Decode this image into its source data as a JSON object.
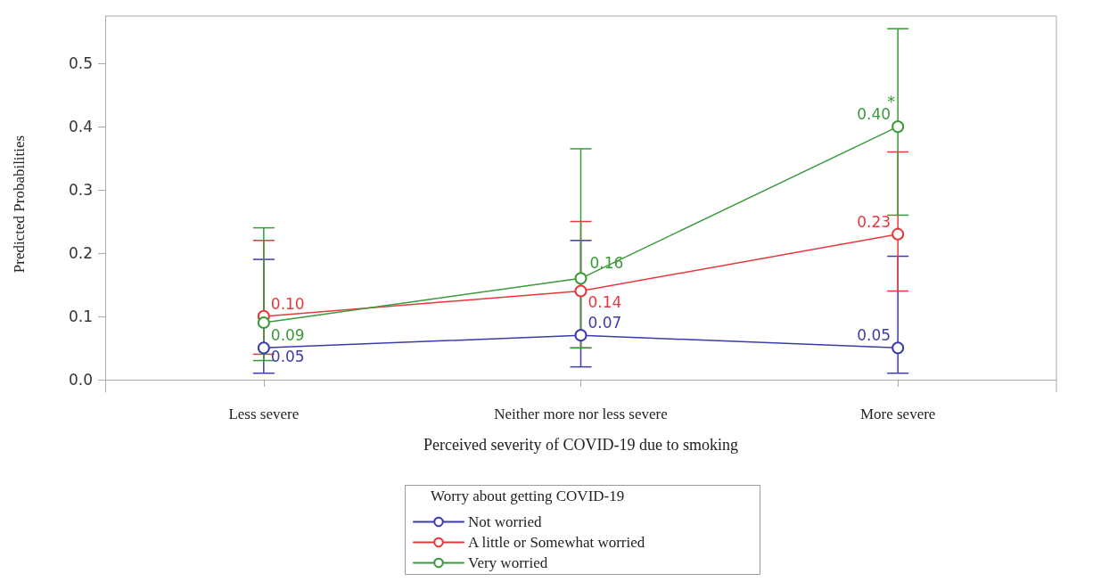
{
  "chart_data": {
    "type": "line",
    "xlabel": "Perceived severity of COVID-19 due to smoking",
    "ylabel": "Predicted Probabilities",
    "legend_title": "Worry about getting COVID-19",
    "categories": [
      "Less severe",
      "Neither more nor less severe",
      "More severe"
    ],
    "series": [
      {
        "name": "Not worried",
        "color": "#3c3cac",
        "values": [
          0.05,
          0.07,
          0.05
        ],
        "value_labels": [
          "0.05",
          "0.07",
          "0.05"
        ],
        "errors": [
          [
            0.01,
            0.19
          ],
          [
            0.02,
            0.22
          ],
          [
            0.01,
            0.195
          ]
        ]
      },
      {
        "name": "A little or Somewhat worried",
        "color": "#e8383d",
        "values": [
          0.1,
          0.14,
          0.23
        ],
        "value_labels": [
          "0.10",
          "0.14",
          "0.23"
        ],
        "errors": [
          [
            0.04,
            0.22
          ],
          [
            0.05,
            0.25
          ],
          [
            0.14,
            0.36
          ]
        ]
      },
      {
        "name": "Very worried",
        "color": "#3a9a3a",
        "values": [
          0.09,
          0.16,
          0.4
        ],
        "value_labels": [
          "0.09",
          "0.16",
          "0.40"
        ],
        "errors": [
          [
            0.03,
            0.24
          ],
          [
            0.05,
            0.365
          ],
          [
            0.26,
            0.555
          ]
        ]
      }
    ],
    "ylim": [
      -0.02,
      0.575
    ],
    "yticks": [
      {
        "value": 0,
        "label": "0.0"
      },
      0.1,
      0.2,
      0.3,
      0.4,
      0.5
    ],
    "grid": false,
    "legend": "bottom",
    "marker": "circle",
    "line_style": "solid",
    "annotations": [
      {
        "text": "*",
        "x": "More severe",
        "y": 0.4
      }
    ]
  }
}
